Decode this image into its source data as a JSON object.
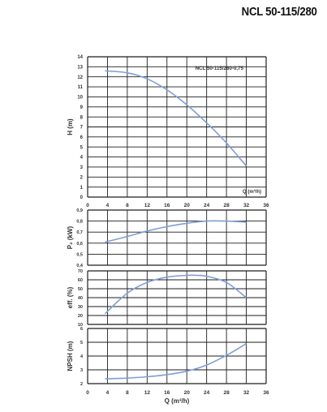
{
  "page": {
    "title": "NCL 50-115/280"
  },
  "colors": {
    "curve": "#7f9fd6",
    "grid": "#1e1e1e",
    "text": "#333333"
  },
  "chart_data": [
    {
      "type": "line",
      "id": "head",
      "annotation": "NCL 50-115/280-0,75",
      "ylabel": "H (m)",
      "xlabel": "Q (m³/h)",
      "xlim": [
        0,
        36
      ],
      "ylim": [
        0,
        14
      ],
      "xticks": [
        "0",
        "4",
        "8",
        "12",
        "16",
        "20",
        "24",
        "28",
        "32",
        "36"
      ],
      "yticks": [
        "0",
        "1",
        "2",
        "3",
        "4",
        "5",
        "6",
        "7",
        "8",
        "9",
        "10",
        "11",
        "12",
        "13",
        "14"
      ],
      "grid": true,
      "series": [
        {
          "x": [
            3.5,
            8,
            12,
            16,
            20,
            24,
            28,
            32
          ],
          "y": [
            12.6,
            12.4,
            11.8,
            10.7,
            9.2,
            7.4,
            5.4,
            3.1
          ]
        }
      ]
    },
    {
      "type": "line",
      "id": "power",
      "ylabel": "P₂ (kW)",
      "xlim": [
        0,
        36
      ],
      "ylim": [
        0.4,
        0.9
      ],
      "xticks": [],
      "yticks": [
        "0,4",
        "0,5",
        "0,6",
        "0,7",
        "0,8",
        "0,9"
      ],
      "grid": true,
      "series": [
        {
          "x": [
            3.5,
            8,
            12,
            16,
            20,
            24,
            28,
            32
          ],
          "y": [
            0.61,
            0.66,
            0.71,
            0.75,
            0.78,
            0.8,
            0.8,
            0.79
          ]
        }
      ]
    },
    {
      "type": "line",
      "id": "efficiency",
      "ylabel": "eff. (%)",
      "xlim": [
        0,
        36
      ],
      "ylim": [
        10,
        70
      ],
      "xticks": [],
      "yticks": [
        "10",
        "20",
        "30",
        "40",
        "50",
        "60",
        "70"
      ],
      "grid": true,
      "series": [
        {
          "x": [
            3.5,
            8,
            12,
            16,
            20,
            22,
            24,
            28,
            32
          ],
          "y": [
            22,
            45,
            57,
            63,
            65,
            65,
            64,
            57,
            40
          ]
        }
      ]
    },
    {
      "type": "line",
      "id": "npsh",
      "ylabel": "NPSH (m)",
      "xlabel": "Q (m³/h)",
      "xlim": [
        0,
        36
      ],
      "ylim": [
        2,
        6
      ],
      "xticks": [
        "0",
        "4",
        "8",
        "12",
        "16",
        "20",
        "24",
        "28",
        "32",
        "36"
      ],
      "yticks": [
        "2",
        "3",
        "4",
        "5",
        "6"
      ],
      "grid": true,
      "series": [
        {
          "x": [
            3.5,
            8,
            12,
            16,
            20,
            24,
            28,
            32
          ],
          "y": [
            2.35,
            2.4,
            2.5,
            2.65,
            2.9,
            3.35,
            4.05,
            4.9
          ]
        }
      ]
    }
  ]
}
